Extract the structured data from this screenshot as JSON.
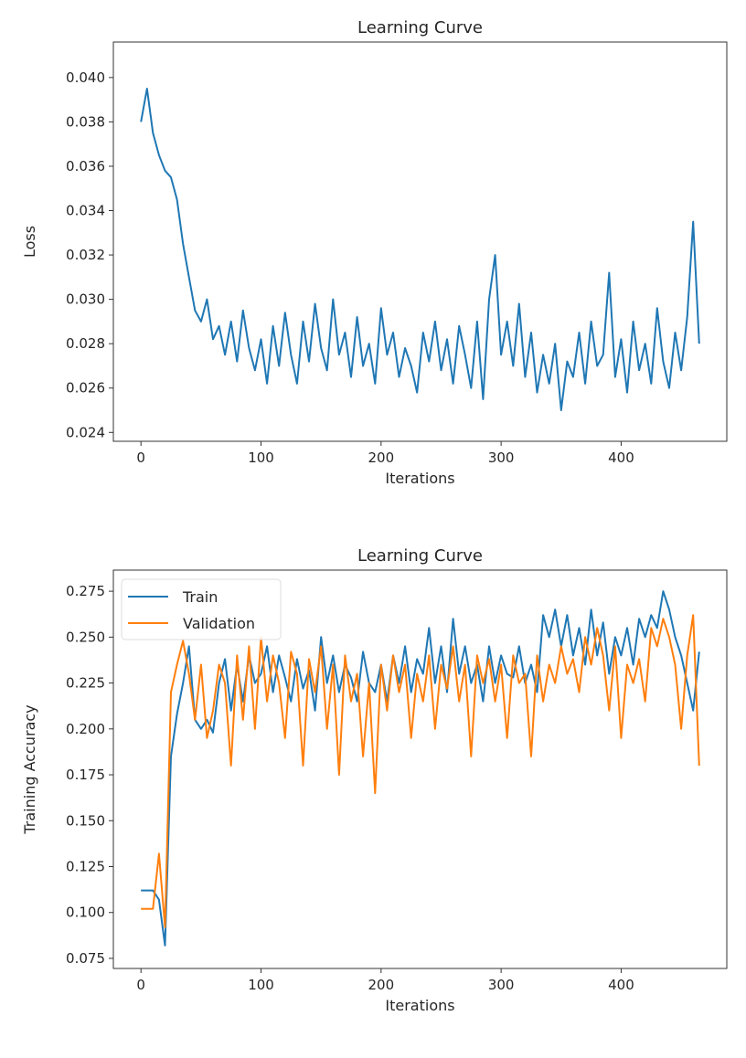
{
  "chart_data": [
    {
      "type": "line",
      "title": "Learning Curve",
      "xlabel": "Iterations",
      "ylabel": "Loss",
      "xlim": [
        -23,
        488
      ],
      "ylim": [
        0.0236,
        0.0416
      ],
      "xticks": [
        0,
        100,
        200,
        300,
        400
      ],
      "yticks": [
        0.024,
        0.026,
        0.028,
        0.03,
        0.032,
        0.034,
        0.036,
        0.038,
        0.04
      ],
      "ytick_labels": [
        "0.024",
        "0.026",
        "0.028",
        "0.030",
        "0.032",
        "0.034",
        "0.036",
        "0.038",
        "0.040"
      ],
      "grid": false,
      "series": [
        {
          "name": "Loss",
          "color": "#1f77b4",
          "values": [
            0.038,
            0.0395,
            0.0375,
            0.0365,
            0.0358,
            0.0355,
            0.0345,
            0.0325,
            0.031,
            0.0295,
            0.029,
            0.03,
            0.0282,
            0.0288,
            0.0275,
            0.029,
            0.0272,
            0.0295,
            0.0278,
            0.0268,
            0.0282,
            0.0262,
            0.0288,
            0.027,
            0.0294,
            0.0275,
            0.0262,
            0.029,
            0.0272,
            0.0298,
            0.0278,
            0.0268,
            0.03,
            0.0275,
            0.0285,
            0.0265,
            0.0292,
            0.027,
            0.028,
            0.0262,
            0.0296,
            0.0275,
            0.0285,
            0.0265,
            0.0278,
            0.027,
            0.0258,
            0.0285,
            0.0272,
            0.029,
            0.0268,
            0.0282,
            0.0262,
            0.0288,
            0.0275,
            0.026,
            0.029,
            0.0255,
            0.03,
            0.032,
            0.0275,
            0.029,
            0.027,
            0.0298,
            0.0265,
            0.0285,
            0.0258,
            0.0275,
            0.0262,
            0.028,
            0.025,
            0.0272,
            0.0265,
            0.0285,
            0.0262,
            0.029,
            0.027,
            0.0275,
            0.0312,
            0.0265,
            0.0282,
            0.0258,
            0.029,
            0.0268,
            0.028,
            0.0262,
            0.0296,
            0.0272,
            0.026,
            0.0285,
            0.0268,
            0.0292,
            0.0335,
            0.028
          ]
        }
      ]
    },
    {
      "type": "line",
      "title": "Learning Curve",
      "xlabel": "Iterations",
      "ylabel": "Training Accuracy",
      "xlim": [
        -23,
        488
      ],
      "ylim": [
        0.0695,
        0.2865
      ],
      "xticks": [
        0,
        100,
        200,
        300,
        400
      ],
      "yticks": [
        0.075,
        0.1,
        0.125,
        0.15,
        0.175,
        0.2,
        0.225,
        0.25,
        0.275
      ],
      "ytick_labels": [
        "0.075",
        "0.100",
        "0.125",
        "0.150",
        "0.175",
        "0.200",
        "0.225",
        "0.250",
        "0.275"
      ],
      "grid": false,
      "legend": "top-left",
      "series": [
        {
          "name": "Train",
          "color": "#1f77b4",
          "values": [
            0.112,
            0.112,
            0.112,
            0.107,
            0.082,
            0.185,
            0.208,
            0.225,
            0.245,
            0.205,
            0.2,
            0.205,
            0.198,
            0.225,
            0.238,
            0.21,
            0.235,
            0.215,
            0.24,
            0.225,
            0.23,
            0.245,
            0.22,
            0.24,
            0.228,
            0.215,
            0.238,
            0.222,
            0.232,
            0.21,
            0.25,
            0.225,
            0.24,
            0.22,
            0.235,
            0.228,
            0.215,
            0.242,
            0.225,
            0.22,
            0.235,
            0.215,
            0.24,
            0.225,
            0.245,
            0.22,
            0.238,
            0.23,
            0.255,
            0.225,
            0.245,
            0.22,
            0.26,
            0.23,
            0.245,
            0.225,
            0.235,
            0.215,
            0.245,
            0.225,
            0.24,
            0.23,
            0.228,
            0.245,
            0.225,
            0.235,
            0.22,
            0.262,
            0.25,
            0.265,
            0.245,
            0.262,
            0.24,
            0.255,
            0.235,
            0.265,
            0.24,
            0.258,
            0.23,
            0.25,
            0.24,
            0.255,
            0.235,
            0.26,
            0.25,
            0.262,
            0.255,
            0.275,
            0.265,
            0.25,
            0.24,
            0.225,
            0.21,
            0.242
          ]
        },
        {
          "name": "Validation",
          "color": "#ff7f0e",
          "values": [
            0.102,
            0.102,
            0.102,
            0.132,
            0.092,
            0.22,
            0.235,
            0.248,
            0.23,
            0.205,
            0.235,
            0.195,
            0.21,
            0.235,
            0.225,
            0.18,
            0.24,
            0.205,
            0.245,
            0.2,
            0.25,
            0.215,
            0.24,
            0.225,
            0.195,
            0.242,
            0.23,
            0.18,
            0.238,
            0.22,
            0.245,
            0.2,
            0.235,
            0.175,
            0.24,
            0.215,
            0.23,
            0.185,
            0.225,
            0.165,
            0.235,
            0.21,
            0.24,
            0.22,
            0.235,
            0.195,
            0.23,
            0.215,
            0.24,
            0.2,
            0.235,
            0.222,
            0.245,
            0.215,
            0.235,
            0.185,
            0.24,
            0.225,
            0.238,
            0.215,
            0.235,
            0.195,
            0.24,
            0.225,
            0.23,
            0.185,
            0.24,
            0.215,
            0.235,
            0.225,
            0.245,
            0.23,
            0.238,
            0.22,
            0.25,
            0.235,
            0.255,
            0.24,
            0.21,
            0.245,
            0.195,
            0.235,
            0.225,
            0.238,
            0.215,
            0.255,
            0.245,
            0.26,
            0.25,
            0.235,
            0.2,
            0.24,
            0.262,
            0.18
          ]
        }
      ]
    }
  ],
  "x": [
    0,
    5,
    10,
    15,
    20,
    25,
    30,
    35,
    40,
    45,
    50,
    55,
    60,
    65,
    70,
    75,
    80,
    85,
    90,
    95,
    100,
    105,
    110,
    115,
    120,
    125,
    130,
    135,
    140,
    145,
    150,
    155,
    160,
    165,
    170,
    175,
    180,
    185,
    190,
    195,
    200,
    205,
    210,
    215,
    220,
    225,
    230,
    235,
    240,
    245,
    250,
    255,
    260,
    265,
    270,
    275,
    280,
    285,
    290,
    295,
    300,
    305,
    310,
    315,
    320,
    325,
    330,
    335,
    340,
    345,
    350,
    355,
    360,
    365,
    370,
    375,
    380,
    385,
    390,
    395,
    400,
    405,
    410,
    415,
    420,
    425,
    430,
    435,
    440,
    445,
    450,
    455,
    460,
    465
  ]
}
